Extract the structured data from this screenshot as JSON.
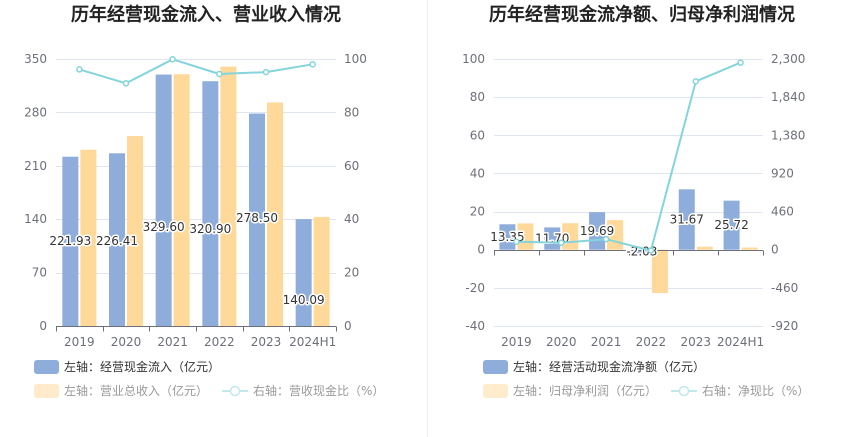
{
  "chart_data": [
    {
      "type": "bar",
      "title": "历年经营现金流入、营业收入情况",
      "categories": [
        "2019",
        "2020",
        "2021",
        "2022",
        "2023",
        "2024H1"
      ],
      "series": [
        {
          "name": "左轴：经营现金流入（亿元）",
          "type": "bar",
          "axis": "left",
          "color": "#8eaddb",
          "values": [
            221.93,
            226.41,
            329.6,
            320.9,
            278.5,
            140.09
          ],
          "labels": [
            "221.93",
            "226.41",
            "329.60",
            "320.90",
            "278.50",
            "140.09"
          ]
        },
        {
          "name": "左轴：营业总收入（亿元）",
          "type": "bar",
          "axis": "left",
          "color": "#ffd999",
          "values": [
            231.0,
            249.0,
            330.0,
            340.0,
            293.0,
            143.0
          ]
        },
        {
          "name": "右轴：营收现金比（%）",
          "type": "line",
          "axis": "right",
          "color": "#84d4dc",
          "values": [
            96.1,
            90.9,
            99.9,
            94.4,
            95.1,
            98.0
          ]
        }
      ],
      "y_left": {
        "range": [
          0,
          350
        ],
        "ticks": [
          0,
          70,
          140,
          210,
          280,
          350
        ],
        "tick_labels": [
          "0",
          "70",
          "140",
          "210",
          "280",
          "350"
        ]
      },
      "y_right": {
        "range": [
          0,
          100
        ],
        "ticks": [
          0,
          20,
          40,
          60,
          80,
          100
        ],
        "tick_labels": [
          "0",
          "20",
          "40",
          "60",
          "80",
          "100"
        ]
      },
      "grid": true,
      "legend_position": "bottom-left"
    },
    {
      "type": "bar",
      "title": "历年经营现金流净额、归母净利润情况",
      "categories": [
        "2019",
        "2020",
        "2021",
        "2022",
        "2023",
        "2024H1"
      ],
      "series": [
        {
          "name": "左轴：经营活动现金流净额（亿元）",
          "type": "bar",
          "axis": "left",
          "color": "#8eaddb",
          "values": [
            13.35,
            11.7,
            19.69,
            -2.03,
            31.67,
            25.72
          ],
          "labels": [
            "13.35",
            "11.70",
            "19.69",
            "-2.03",
            "31.67",
            "25.72"
          ]
        },
        {
          "name": "左轴：归母净利润（亿元）",
          "type": "bar",
          "axis": "left",
          "color": "#ffd999",
          "values": [
            13.8,
            13.9,
            15.5,
            -22.7,
            1.56,
            1.14
          ]
        },
        {
          "name": "右轴：净现比（%）",
          "type": "line",
          "axis": "right",
          "color": "#84d4dc",
          "values": [
            96.7,
            84.2,
            127.0,
            -8.9,
            2030,
            2256
          ]
        }
      ],
      "y_left": {
        "range": [
          -40,
          100
        ],
        "ticks": [
          -40,
          -20,
          0,
          20,
          40,
          60,
          80,
          100
        ],
        "tick_labels": [
          "-40",
          "-20",
          "0",
          "20",
          "40",
          "60",
          "80",
          "100"
        ]
      },
      "y_right": {
        "range": [
          -920,
          2300
        ],
        "ticks": [
          -920,
          -460,
          0,
          460,
          920,
          1380,
          1840,
          2300
        ],
        "tick_labels": [
          "-920",
          "-460",
          "0",
          "460",
          "920",
          "1,380",
          "1,840",
          "2,300"
        ]
      },
      "grid": true,
      "legend_position": "bottom-left"
    }
  ]
}
